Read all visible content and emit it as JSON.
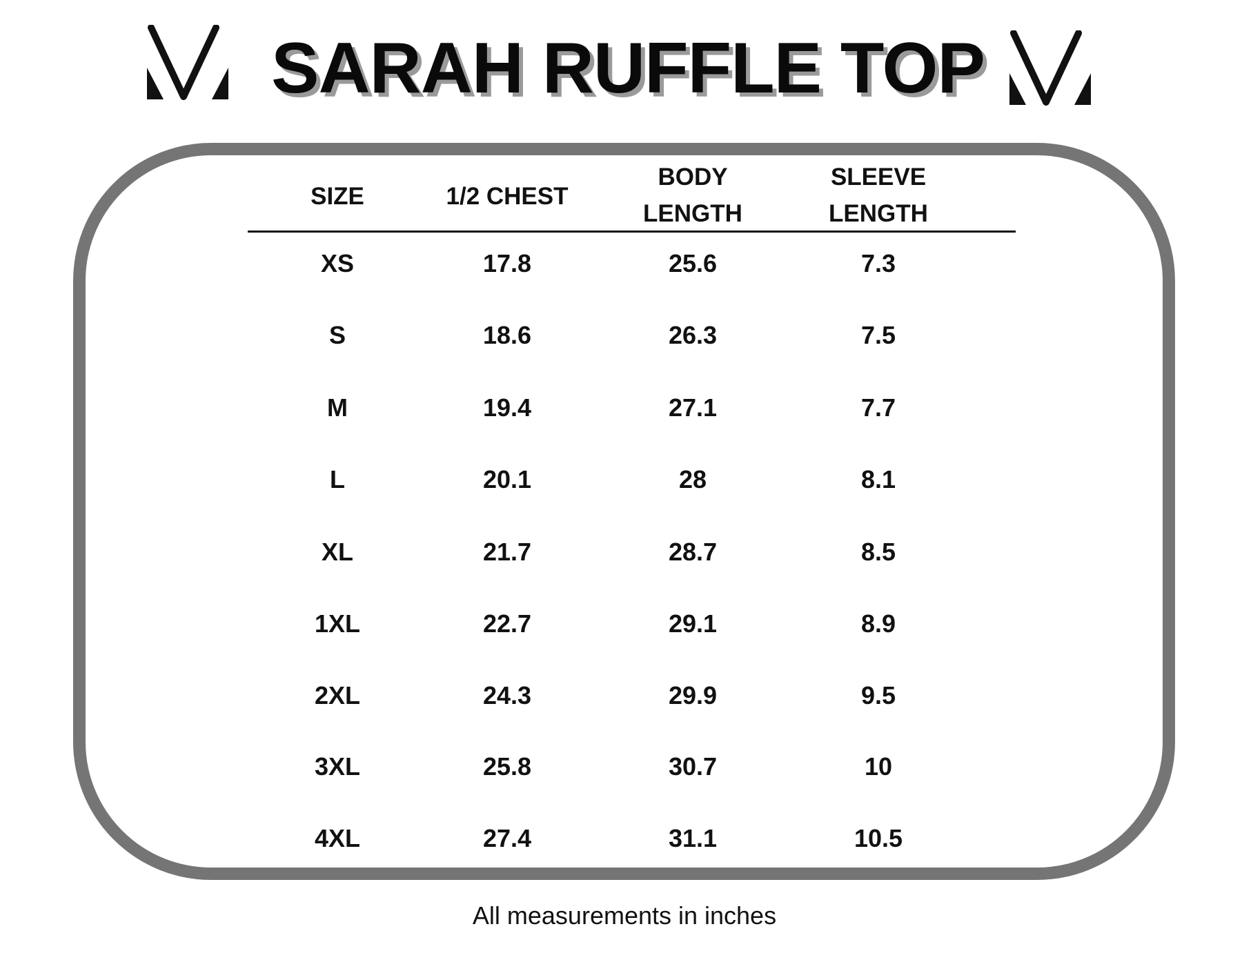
{
  "title": "SARAH RUFFLE TOP",
  "logo": {
    "icon": "v-monogram-logo",
    "color": "#111111"
  },
  "frame_color": "#757575",
  "table": {
    "headers": [
      "SIZE",
      "1/2 CHEST",
      "BODY\nLENGTH",
      "SLEEVE\nLENGTH"
    ],
    "rows": [
      [
        "XS",
        "17.8",
        "25.6",
        "7.3"
      ],
      [
        "S",
        "18.6",
        "26.3",
        "7.5"
      ],
      [
        "M",
        "19.4",
        "27.1",
        "7.7"
      ],
      [
        "L",
        "20.1",
        "28",
        "8.1"
      ],
      [
        "XL",
        "21.7",
        "28.7",
        "8.5"
      ],
      [
        "1XL",
        "22.7",
        "29.1",
        "8.9"
      ],
      [
        "2XL",
        "24.3",
        "29.9",
        "9.5"
      ],
      [
        "3XL",
        "25.8",
        "30.7",
        "10"
      ],
      [
        "4XL",
        "27.4",
        "31.1",
        "10.5"
      ]
    ]
  },
  "footer": "All measurements in inches"
}
